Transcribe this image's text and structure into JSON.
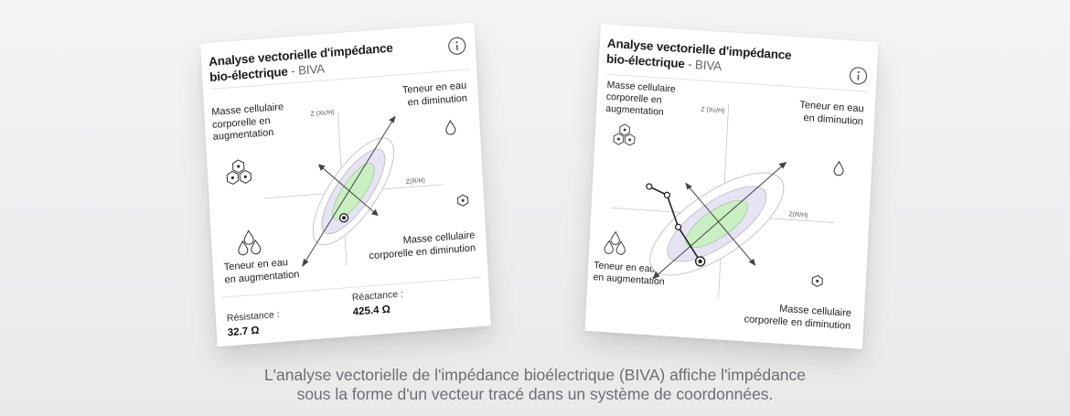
{
  "left_card": {
    "title_bold_1": "Analyse vectorielle d'impédance",
    "title_bold_2": "bio-électrique",
    "title_suffix": " - BIVA",
    "icon": "info-icon",
    "quadrants": {
      "top_left_1": "Masse cellulaire",
      "top_left_2": "corporelle en",
      "top_left_3": "augmentation",
      "top_right_1": "Teneur en eau",
      "top_right_2": "en diminution",
      "bottom_left_1": "Teneur en eau",
      "bottom_left_2": "en augmentation",
      "bottom_right_1": "Masse cellulaire",
      "bottom_right_2": "corporelle en diminution"
    },
    "axis_y": "Z (Xc/H)",
    "axis_x": "Z(R/H)",
    "resistance_label": "Résistance :",
    "resistance_value": "32.7 Ω",
    "reactance_label": "Réactance :",
    "reactance_value": "425.4 Ω"
  },
  "right_card": {
    "title_bold_1": "Analyse vectorielle d'impédance",
    "title_bold_2": "bio-électrique",
    "title_suffix": " - BIVA",
    "icon": "info-icon",
    "quadrants": {
      "top_left_1": "Masse cellulaire",
      "top_left_2": "corporelle en",
      "top_left_3": "augmentation",
      "top_right_1": "Teneur en eau",
      "top_right_2": "en diminution",
      "bottom_left_1": "Teneur en eau",
      "bottom_left_2": "en augmentation",
      "bottom_right_1": "Masse cellulaire",
      "bottom_right_2": "corporelle en diminution"
    },
    "axis_y": "Z (Xc/H)",
    "axis_x": "Z(R/H)"
  },
  "caption_line_1": "L'analyse vectorielle de l'impédance bioélectrique (BIVA) affiche l'impédance",
  "caption_line_2": "sous la forme d'un vecteur tracé dans un système de coordonnées.",
  "colors": {
    "ellipse_inner": "#c9efc2",
    "ellipse_middle": "#e6e3f3",
    "ellipse_outer": "#ffffff",
    "caption": "#6e6e73"
  }
}
